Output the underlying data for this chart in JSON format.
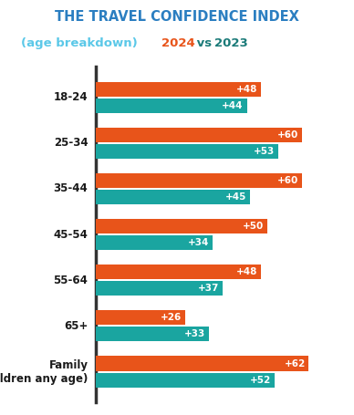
{
  "title_line1": "THE TRAVEL CONFIDENCE INDEX",
  "categories": [
    "18-24",
    "25-34",
    "35-44",
    "45-54",
    "55-64",
    "65+",
    "Family\n(children any age)"
  ],
  "values_2024": [
    48,
    60,
    60,
    50,
    48,
    26,
    62
  ],
  "values_2023": [
    44,
    53,
    45,
    34,
    37,
    33,
    52
  ],
  "color_2024": "#E8541A",
  "color_2023": "#1AA5A0",
  "label_color": "#ffffff",
  "title_color_main": "#2B7EC1",
  "title_color_sub": "#5BC8E8",
  "title_color_2024": "#E8541A",
  "title_color_vs": "#1A7A78",
  "title_color_2023": "#1A7A78",
  "background_color": "#ffffff",
  "xlim": [
    0,
    70
  ],
  "bar_height": 0.32,
  "bar_gap": 0.04
}
